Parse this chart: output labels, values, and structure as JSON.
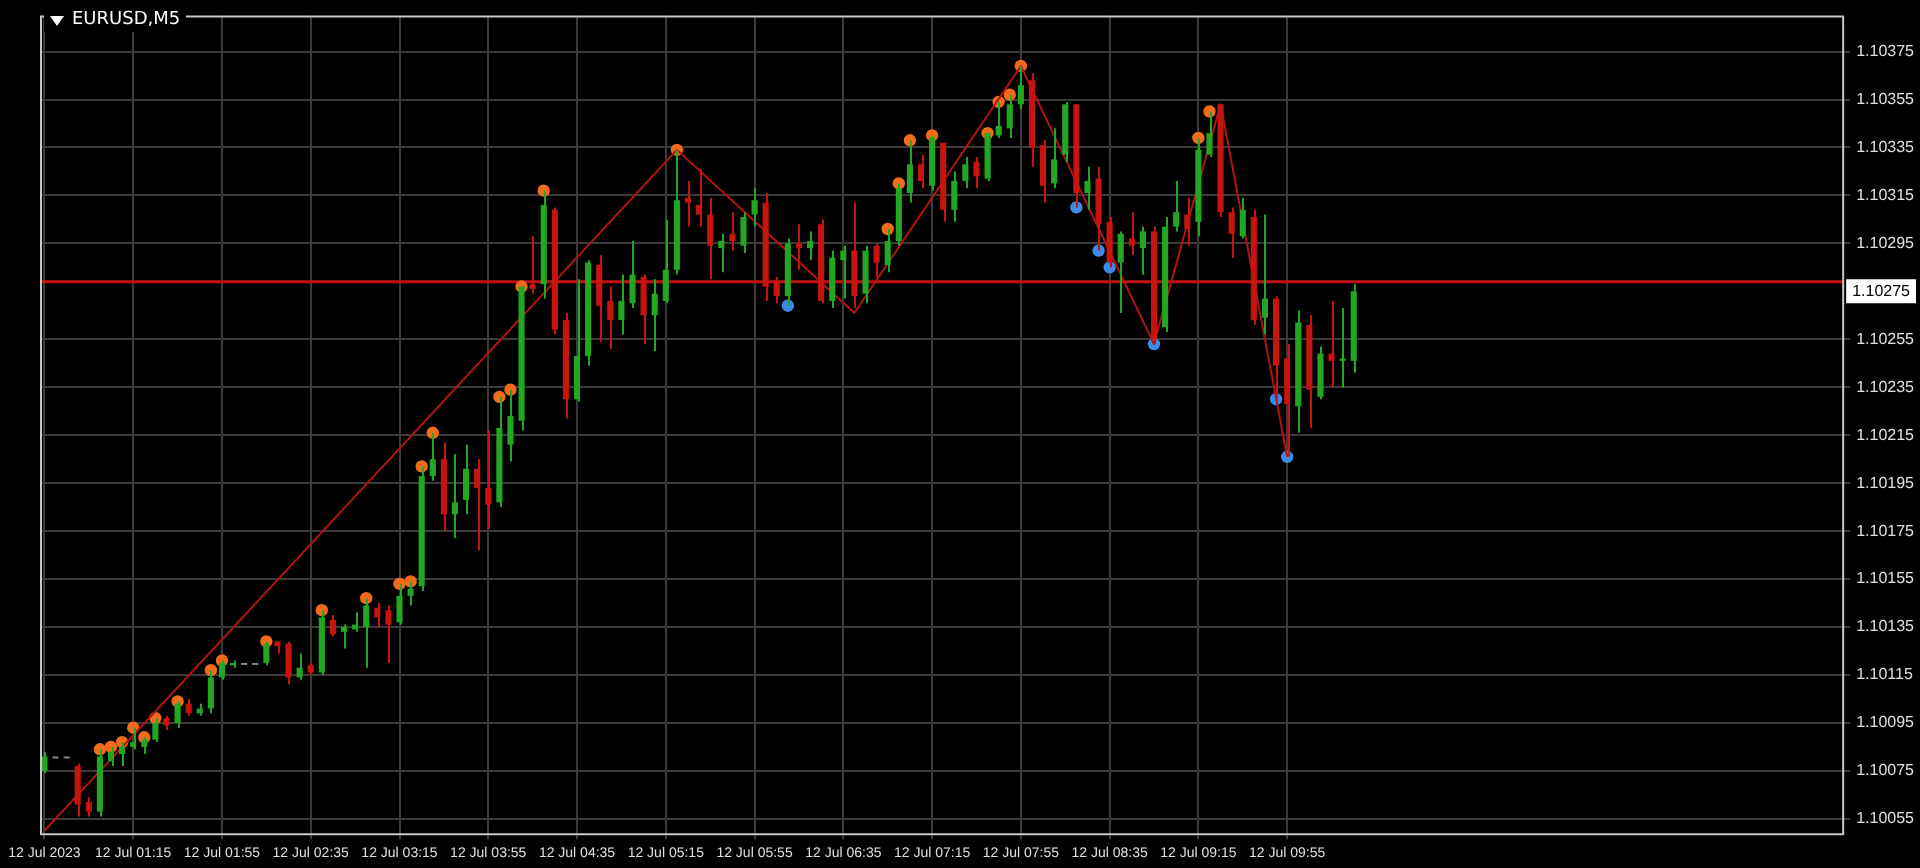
{
  "chart_data": {
    "type": "candlestick",
    "title": "EURUSD,M5",
    "x": [
      "2023-07-12T00:35",
      "2023-07-12T00:40",
      "2023-07-12T00:45",
      "2023-07-12T00:50",
      "2023-07-12T00:55",
      "2023-07-12T01:00",
      "2023-07-12T01:05",
      "2023-07-12T01:10",
      "2023-07-12T01:15",
      "2023-07-12T01:20",
      "2023-07-12T01:25",
      "2023-07-12T01:30",
      "2023-07-12T01:35",
      "2023-07-12T01:40",
      "2023-07-12T01:45",
      "2023-07-12T01:50",
      "2023-07-12T01:55",
      "2023-07-12T02:00",
      "2023-07-12T02:05",
      "2023-07-12T02:10",
      "2023-07-12T02:15",
      "2023-07-12T02:20",
      "2023-07-12T02:25",
      "2023-07-12T02:30",
      "2023-07-12T02:35",
      "2023-07-12T02:40",
      "2023-07-12T02:45",
      "2023-07-12T02:50",
      "2023-07-12T02:55",
      "2023-07-12T03:00",
      "2023-07-12T03:05",
      "2023-07-12T03:10",
      "2023-07-12T03:15",
      "2023-07-12T03:20",
      "2023-07-12T03:25",
      "2023-07-12T03:30",
      "2023-07-12T03:35",
      "2023-07-12T03:40",
      "2023-07-12T03:45",
      "2023-07-12T03:50",
      "2023-07-12T03:55",
      "2023-07-12T04:00",
      "2023-07-12T04:05",
      "2023-07-12T04:10",
      "2023-07-12T04:15",
      "2023-07-12T04:20",
      "2023-07-12T04:25",
      "2023-07-12T04:30",
      "2023-07-12T04:35",
      "2023-07-12T04:40",
      "2023-07-12T04:45",
      "2023-07-12T04:50",
      "2023-07-12T04:55",
      "2023-07-12T05:00",
      "2023-07-12T05:05",
      "2023-07-12T05:10",
      "2023-07-12T05:15",
      "2023-07-12T05:20",
      "2023-07-12T05:25",
      "2023-07-12T05:30",
      "2023-07-12T05:35",
      "2023-07-12T05:40",
      "2023-07-12T05:45",
      "2023-07-12T05:50",
      "2023-07-12T05:55",
      "2023-07-12T06:00",
      "2023-07-12T06:05",
      "2023-07-12T06:10",
      "2023-07-12T06:15",
      "2023-07-12T06:20",
      "2023-07-12T06:25",
      "2023-07-12T06:30",
      "2023-07-12T06:35",
      "2023-07-12T06:40",
      "2023-07-12T06:45",
      "2023-07-12T06:50",
      "2023-07-12T06:55",
      "2023-07-12T07:00",
      "2023-07-12T07:05",
      "2023-07-12T07:10",
      "2023-07-12T07:15",
      "2023-07-12T07:20",
      "2023-07-12T07:25",
      "2023-07-12T07:30",
      "2023-07-12T07:35",
      "2023-07-12T07:40",
      "2023-07-12T07:45",
      "2023-07-12T07:50",
      "2023-07-12T07:55",
      "2023-07-12T08:00",
      "2023-07-12T08:05",
      "2023-07-12T08:10",
      "2023-07-12T08:15",
      "2023-07-12T08:20",
      "2023-07-12T08:25",
      "2023-07-12T08:30",
      "2023-07-12T08:35",
      "2023-07-12T08:40",
      "2023-07-12T08:45",
      "2023-07-12T08:50",
      "2023-07-12T08:55",
      "2023-07-12T09:00",
      "2023-07-12T09:05",
      "2023-07-12T09:10",
      "2023-07-12T09:15",
      "2023-07-12T09:20",
      "2023-07-12T09:25",
      "2023-07-12T09:30",
      "2023-07-12T09:35",
      "2023-07-12T09:40",
      "2023-07-12T09:45",
      "2023-07-12T09:50",
      "2023-07-12T09:55",
      "2023-07-12T10:00",
      "2023-07-12T10:05",
      "2023-07-12T10:10",
      "2023-07-12T10:15",
      "2023-07-12T10:20",
      "2023-07-12T10:25"
    ],
    "ohlc": [
      [
        1.10075,
        1.10083,
        1.10074,
        1.10081
      ],
      [
        1.10081,
        1.10081,
        1.10081,
        1.10081
      ],
      [
        1.10081,
        1.10081,
        1.10081,
        1.10081
      ],
      [
        1.10077,
        1.10078,
        1.10056,
        1.10061
      ],
      [
        1.10062,
        1.10064,
        1.10056,
        1.10058
      ],
      [
        1.10058,
        1.10084,
        1.10056,
        1.10081
      ],
      [
        1.10079,
        1.10085,
        1.10077,
        1.10083
      ],
      [
        1.10082,
        1.10087,
        1.10077,
        1.10085
      ],
      [
        1.10085,
        1.10093,
        1.10084,
        1.10087
      ],
      [
        1.10085,
        1.10089,
        1.10082,
        1.10088
      ],
      [
        1.10088,
        1.10097,
        1.10087,
        1.10095
      ],
      [
        1.10097,
        1.10098,
        1.10092,
        1.10094
      ],
      [
        1.10095,
        1.10104,
        1.10093,
        1.10103
      ],
      [
        1.10103,
        1.10105,
        1.10098,
        1.10099
      ],
      [
        1.10099,
        1.10103,
        1.10098,
        1.10101
      ],
      [
        1.10101,
        1.10117,
        1.10099,
        1.10114
      ],
      [
        1.10114,
        1.10121,
        1.10113,
        1.1012
      ],
      [
        1.10119,
        1.10121,
        1.10118,
        1.1012
      ],
      [
        1.1012,
        1.1012,
        1.1012,
        1.1012
      ],
      [
        1.1012,
        1.1012,
        1.1012,
        1.1012
      ],
      [
        1.1012,
        1.10129,
        1.10119,
        1.10128
      ],
      [
        1.10129,
        1.10129,
        1.10124,
        1.10127
      ],
      [
        1.10128,
        1.10129,
        1.10111,
        1.10114
      ],
      [
        1.10114,
        1.10124,
        1.10113,
        1.10118
      ],
      [
        1.10119,
        1.1012,
        1.10115,
        1.10116
      ],
      [
        1.10116,
        1.10142,
        1.10115,
        1.10139
      ],
      [
        1.10138,
        1.1014,
        1.10131,
        1.10132
      ],
      [
        1.10133,
        1.10136,
        1.10126,
        1.10135
      ],
      [
        1.10134,
        1.10141,
        1.10133,
        1.10136
      ],
      [
        1.10135,
        1.10147,
        1.10118,
        1.10144
      ],
      [
        1.10143,
        1.10145,
        1.10135,
        1.10139
      ],
      [
        1.10142,
        1.10144,
        1.1012,
        1.10136
      ],
      [
        1.10137,
        1.10153,
        1.10136,
        1.10148
      ],
      [
        1.10148,
        1.10154,
        1.10144,
        1.10151
      ],
      [
        1.10152,
        1.10202,
        1.1015,
        1.10198
      ],
      [
        1.10198,
        1.10216,
        1.10196,
        1.10205
      ],
      [
        1.10205,
        1.10212,
        1.10175,
        1.10182
      ],
      [
        1.10182,
        1.10207,
        1.10172,
        1.10187
      ],
      [
        1.10188,
        1.10211,
        1.10182,
        1.10201
      ],
      [
        1.10201,
        1.10205,
        1.10167,
        1.10193
      ],
      [
        1.10193,
        1.10217,
        1.10176,
        1.10186
      ],
      [
        1.10187,
        1.10231,
        1.10185,
        1.10218
      ],
      [
        1.10211,
        1.10234,
        1.10204,
        1.10223
      ],
      [
        1.10221,
        1.10277,
        1.10217,
        1.10277
      ],
      [
        1.10278,
        1.10298,
        1.10274,
        1.10276
      ],
      [
        1.10278,
        1.10317,
        1.10272,
        1.10311
      ],
      [
        1.10309,
        1.1031,
        1.10257,
        1.10259
      ],
      [
        1.10263,
        1.10266,
        1.10222,
        1.1023
      ],
      [
        1.1023,
        1.1028,
        1.10229,
        1.10248
      ],
      [
        1.10248,
        1.10288,
        1.10244,
        1.10287
      ],
      [
        1.10286,
        1.1029,
        1.10254,
        1.10269
      ],
      [
        1.10271,
        1.10277,
        1.10251,
        1.10263
      ],
      [
        1.10263,
        1.10282,
        1.10257,
        1.10271
      ],
      [
        1.1027,
        1.10296,
        1.10268,
        1.10282
      ],
      [
        1.10281,
        1.10282,
        1.10253,
        1.10265
      ],
      [
        1.10265,
        1.1028,
        1.1025,
        1.10274
      ],
      [
        1.10271,
        1.10305,
        1.1027,
        1.10284
      ],
      [
        1.10284,
        1.10334,
        1.10282,
        1.10313
      ],
      [
        1.10314,
        1.10321,
        1.10302,
        1.10312
      ],
      [
        1.10311,
        1.10326,
        1.10302,
        1.10307
      ],
      [
        1.10307,
        1.10314,
        1.1028,
        1.10294
      ],
      [
        1.10293,
        1.10299,
        1.10283,
        1.10296
      ],
      [
        1.10299,
        1.10308,
        1.10292,
        1.10296
      ],
      [
        1.10294,
        1.10308,
        1.10291,
        1.10306
      ],
      [
        1.10307,
        1.10318,
        1.10302,
        1.10313
      ],
      [
        1.10312,
        1.10316,
        1.10271,
        1.10277
      ],
      [
        1.10279,
        1.10281,
        1.1027,
        1.10273
      ],
      [
        1.10273,
        1.10297,
        1.10269,
        1.10295
      ],
      [
        1.10295,
        1.10303,
        1.10284,
        1.10293
      ],
      [
        1.10293,
        1.103,
        1.10288,
        1.10296
      ],
      [
        1.10303,
        1.10305,
        1.1027,
        1.10271
      ],
      [
        1.10271,
        1.10292,
        1.10268,
        1.10289
      ],
      [
        1.10288,
        1.10294,
        1.10272,
        1.10292
      ],
      [
        1.10292,
        1.10312,
        1.10268,
        1.10273
      ],
      [
        1.10274,
        1.10294,
        1.1027,
        1.10292
      ],
      [
        1.10294,
        1.10295,
        1.10281,
        1.10287
      ],
      [
        1.10286,
        1.10301,
        1.10283,
        1.10296
      ],
      [
        1.10296,
        1.1032,
        1.10294,
        1.10318
      ],
      [
        1.10316,
        1.10338,
        1.10312,
        1.10328
      ],
      [
        1.10328,
        1.10332,
        1.10318,
        1.10321
      ],
      [
        1.10319,
        1.1034,
        1.10317,
        1.10339
      ],
      [
        1.10337,
        1.10337,
        1.10304,
        1.10309
      ],
      [
        1.10309,
        1.10325,
        1.10304,
        1.10321
      ],
      [
        1.10321,
        1.10331,
        1.10318,
        1.10328
      ],
      [
        1.10329,
        1.10331,
        1.10318,
        1.10323
      ],
      [
        1.10322,
        1.10341,
        1.10321,
        1.10341
      ],
      [
        1.1034,
        1.10354,
        1.10339,
        1.10344
      ],
      [
        1.10343,
        1.10357,
        1.10339,
        1.10353
      ],
      [
        1.10353,
        1.10369,
        1.10351,
        1.10361
      ],
      [
        1.10363,
        1.10366,
        1.10327,
        1.10335
      ],
      [
        1.10336,
        1.10338,
        1.10312,
        1.10319
      ],
      [
        1.1032,
        1.10343,
        1.10318,
        1.1033
      ],
      [
        1.10332,
        1.10354,
        1.10329,
        1.10353
      ],
      [
        1.10353,
        1.10353,
        1.1031,
        1.10316
      ],
      [
        1.10316,
        1.10327,
        1.10309,
        1.10321
      ],
      [
        1.10322,
        1.10327,
        1.10292,
        1.10303
      ],
      [
        1.10304,
        1.10306,
        1.10285,
        1.10287
      ],
      [
        1.10287,
        1.103,
        1.10266,
        1.10299
      ],
      [
        1.10297,
        1.10308,
        1.1029,
        1.10294
      ],
      [
        1.10293,
        1.10302,
        1.10282,
        1.103
      ],
      [
        1.103,
        1.10302,
        1.10253,
        1.10255
      ],
      [
        1.1026,
        1.10306,
        1.10258,
        1.10302
      ],
      [
        1.10302,
        1.10321,
        1.103,
        1.10308
      ],
      [
        1.10307,
        1.10314,
        1.10294,
        1.10301
      ],
      [
        1.10304,
        1.10339,
        1.10298,
        1.10334
      ],
      [
        1.10332,
        1.1035,
        1.10331,
        1.10341
      ],
      [
        1.10353,
        1.10353,
        1.10306,
        1.10308
      ],
      [
        1.10308,
        1.1031,
        1.10289,
        1.10299
      ],
      [
        1.10298,
        1.10314,
        1.10297,
        1.10309
      ],
      [
        1.10306,
        1.10309,
        1.10261,
        1.10263
      ],
      [
        1.10264,
        1.10307,
        1.10257,
        1.10272
      ],
      [
        1.10272,
        1.10273,
        1.1023,
        1.10244
      ],
      [
        1.10247,
        1.10253,
        1.10206,
        1.10228
      ],
      [
        1.10227,
        1.10267,
        1.10216,
        1.10262
      ],
      [
        1.10261,
        1.10265,
        1.10218,
        1.10234
      ],
      [
        1.10231,
        1.10252,
        1.1023,
        1.10249
      ],
      [
        1.10249,
        1.10271,
        1.10235,
        1.10246
      ],
      [
        1.10246,
        1.10268,
        1.10235,
        1.10247
      ],
      [
        1.10246,
        1.10278,
        1.10241,
        1.10275
      ]
    ],
    "colors": [
      "#22a722",
      "#8a8a8a",
      "#8a8a8a",
      "#c8140f",
      "#c8140f",
      "#22a722",
      "#22a722",
      "#22a722",
      "#22a722",
      "#22a722",
      "#22a722",
      "#c8140f",
      "#22a722",
      "#c8140f",
      "#22a722",
      "#22a722",
      "#22a722",
      "#22a722",
      "#8a8a8a",
      "#8a8a8a",
      "#22a722",
      "#c8140f",
      "#c8140f",
      "#22a722",
      "#c8140f",
      "#22a722",
      "#c8140f",
      "#22a722",
      "#22a722",
      "#22a722",
      "#c8140f",
      "#c8140f",
      "#22a722",
      "#22a722",
      "#22a722",
      "#22a722",
      "#c8140f",
      "#22a722",
      "#22a722",
      "#c8140f",
      "#c8140f",
      "#22a722",
      "#22a722",
      "#22a722",
      "#c8140f",
      "#22a722",
      "#c8140f",
      "#c8140f",
      "#22a722",
      "#22a722",
      "#c8140f",
      "#c8140f",
      "#22a722",
      "#22a722",
      "#c8140f",
      "#22a722",
      "#22a722",
      "#22a722",
      "#c8140f",
      "#c8140f",
      "#c8140f",
      "#22a722",
      "#c8140f",
      "#22a722",
      "#22a722",
      "#c8140f",
      "#c8140f",
      "#22a722",
      "#c8140f",
      "#22a722",
      "#c8140f",
      "#22a722",
      "#22a722",
      "#c8140f",
      "#22a722",
      "#c8140f",
      "#22a722",
      "#22a722",
      "#22a722",
      "#c8140f",
      "#22a722",
      "#c8140f",
      "#22a722",
      "#22a722",
      "#c8140f",
      "#22a722",
      "#22a722",
      "#22a722",
      "#22a722",
      "#c8140f",
      "#c8140f",
      "#22a722",
      "#22a722",
      "#c8140f",
      "#22a722",
      "#c8140f",
      "#c8140f",
      "#22a722",
      "#c8140f",
      "#22a722",
      "#c8140f",
      "#22a722",
      "#22a722",
      "#c8140f",
      "#22a722",
      "#22a722",
      "#c8140f",
      "#c8140f",
      "#22a722",
      "#c8140f",
      "#22a722",
      "#c8140f",
      "#c8140f",
      "#22a722",
      "#c8140f",
      "#22a722",
      "#c8140f",
      "#22a722",
      "#22a722"
    ],
    "series": [
      {
        "type": "line",
        "color": "#b01414",
        "x": [
          "2023-07-12T00:35",
          "2023-07-12T05:20",
          "2023-07-12T06:40",
          "2023-07-12T07:55",
          "2023-07-12T08:55",
          "2023-07-12T09:25",
          "2023-07-12T09:55"
        ],
        "values": [
          1.1005,
          1.10334,
          1.10266,
          1.10369,
          1.10253,
          1.10353,
          1.10206
        ]
      },
      {
        "type": "scatter",
        "marker": "circle",
        "color": "#f26a1b",
        "x": [
          "2023-07-12T01:00",
          "2023-07-12T01:05",
          "2023-07-12T01:10",
          "2023-07-12T01:15",
          "2023-07-12T01:20",
          "2023-07-12T01:25",
          "2023-07-12T01:35",
          "2023-07-12T01:50",
          "2023-07-12T01:55",
          "2023-07-12T02:15",
          "2023-07-12T02:40",
          "2023-07-12T03:00",
          "2023-07-12T03:15",
          "2023-07-12T03:20",
          "2023-07-12T03:25",
          "2023-07-12T03:30",
          "2023-07-12T04:00",
          "2023-07-12T04:05",
          "2023-07-12T04:10",
          "2023-07-12T04:20",
          "2023-07-12T05:20",
          "2023-07-12T06:55",
          "2023-07-12T07:00",
          "2023-07-12T07:05",
          "2023-07-12T07:15",
          "2023-07-12T07:40",
          "2023-07-12T07:45",
          "2023-07-12T07:50",
          "2023-07-12T07:55",
          "2023-07-12T09:15",
          "2023-07-12T09:20"
        ],
        "values": [
          1.10084,
          1.10085,
          1.10087,
          1.10093,
          1.10089,
          1.10097,
          1.10104,
          1.10117,
          1.10121,
          1.10129,
          1.10142,
          1.10147,
          1.10153,
          1.10154,
          1.10202,
          1.10216,
          1.10231,
          1.10234,
          1.10277,
          1.10317,
          1.10334,
          1.10301,
          1.1032,
          1.10338,
          1.1034,
          1.10341,
          1.10354,
          1.10357,
          1.10369,
          1.10339,
          1.1035
        ]
      },
      {
        "type": "scatter",
        "marker": "circle",
        "color": "#3d8be8",
        "x": [
          "2023-07-12T06:10",
          "2023-07-12T08:20",
          "2023-07-12T08:30",
          "2023-07-12T08:35",
          "2023-07-12T08:55",
          "2023-07-12T09:50",
          "2023-07-12T09:55"
        ],
        "values": [
          1.10269,
          1.1031,
          1.10292,
          1.10285,
          1.10253,
          1.1023,
          1.10206
        ]
      }
    ],
    "xlim": [
      "2023-07-12T00:33",
      "2023-07-12T14:06"
    ],
    "xticks": [
      {
        "value": "2023-07-12T00:35",
        "label": "12 Jul 2023"
      },
      {
        "value": "2023-07-12T01:15",
        "label": "12 Jul 01:15"
      },
      {
        "value": "2023-07-12T01:55",
        "label": "12 Jul 01:55"
      },
      {
        "value": "2023-07-12T02:35",
        "label": "12 Jul 02:35"
      },
      {
        "value": "2023-07-12T03:15",
        "label": "12 Jul 03:15"
      },
      {
        "value": "2023-07-12T03:55",
        "label": "12 Jul 03:55"
      },
      {
        "value": "2023-07-12T04:35",
        "label": "12 Jul 04:35"
      },
      {
        "value": "2023-07-12T05:15",
        "label": "12 Jul 05:15"
      },
      {
        "value": "2023-07-12T05:55",
        "label": "12 Jul 05:55"
      },
      {
        "value": "2023-07-12T06:35",
        "label": "12 Jul 06:35"
      },
      {
        "value": "2023-07-12T07:15",
        "label": "12 Jul 07:15"
      },
      {
        "value": "2023-07-12T07:55",
        "label": "12 Jul 07:55"
      },
      {
        "value": "2023-07-12T08:35",
        "label": "12 Jul 08:35"
      },
      {
        "value": "2023-07-12T09:15",
        "label": "12 Jul 09:15"
      },
      {
        "value": "2023-07-12T09:55",
        "label": "12 Jul 09:55"
      }
    ],
    "ylim": [
      1.10049,
      1.1039
    ],
    "yticks": [
      1.10055,
      1.10075,
      1.10095,
      1.10115,
      1.10135,
      1.10155,
      1.10175,
      1.10195,
      1.10215,
      1.10235,
      1.10255,
      1.10295,
      1.10315,
      1.10335,
      1.10355,
      1.10375
    ],
    "grid": true,
    "ref_lines": [
      {
        "axis": "y",
        "value": 1.10279,
        "color": "#c01414"
      }
    ],
    "annotations": [
      {
        "text": "1.10275",
        "y": 1.10275
      }
    ]
  }
}
